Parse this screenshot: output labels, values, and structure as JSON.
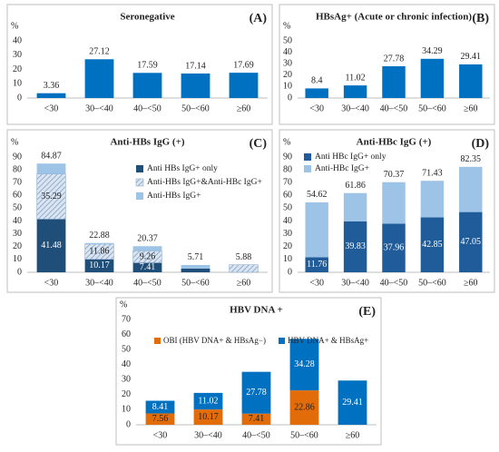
{
  "chart_data": [
    {
      "type": "bar",
      "title": "Seronegative",
      "panel": "(A)",
      "ylabel": "%",
      "categories": [
        "<30",
        "30–<40",
        "40–<50",
        "50–<60",
        "≥60"
      ],
      "values": [
        3.36,
        27.12,
        17.59,
        17.14,
        17.69
      ],
      "color": "#0070c0",
      "ylim": [
        0,
        40
      ],
      "yticks": [
        0,
        10,
        20,
        30,
        40
      ],
      "grid": false
    },
    {
      "type": "bar",
      "title": "HBsAg+ (Acute or chronic infection)",
      "panel": "(B)",
      "ylabel": "%",
      "categories": [
        "<30",
        "30–<40",
        "40–<50",
        "50–<60",
        "≥60"
      ],
      "values": [
        8.4,
        11.02,
        27.78,
        34.29,
        29.41
      ],
      "color": "#0070c0",
      "ylim": [
        0,
        50
      ],
      "yticks": [
        0,
        10,
        20,
        30,
        40,
        50
      ],
      "grid": false
    },
    {
      "type": "stacked_bar",
      "title": "Anti-HBs IgG (+)",
      "panel": "(C)",
      "ylabel": "%",
      "categories": [
        "<30",
        "30–<40",
        "40–<50",
        "50–<60",
        "≥60"
      ],
      "series": [
        {
          "name": "Anti HBs IgG+ only",
          "color": "#1f4e79",
          "values": [
            41.48,
            10.17,
            7.41,
            2.86,
            0
          ],
          "value_labels": [
            "41.48",
            "10.17",
            "7.41",
            null,
            null
          ]
        },
        {
          "name": "Anti-HBs IgG+&Anti-HBc IgG+",
          "color": "#7f9fc4",
          "hatch": true,
          "values": [
            35.29,
            11.86,
            9.26,
            0,
            5.88
          ],
          "value_labels": [
            "35.29",
            "11.86",
            "9.26",
            null,
            null
          ]
        },
        {
          "name": "Anti-HBs IgG+",
          "color": "#9dc3e6",
          "values": [
            8.1,
            0.85,
            3.7,
            2.85,
            0
          ]
        }
      ],
      "totals": [
        84.87,
        22.88,
        20.37,
        5.71,
        5.88
      ],
      "ylim": [
        0,
        90
      ],
      "yticks": [
        0,
        10,
        20,
        30,
        40,
        50,
        60,
        70,
        80,
        90
      ],
      "grid": false,
      "legend": "upper right"
    },
    {
      "type": "stacked_bar",
      "title": "Anti-HBc IgG (+)",
      "panel": "(D)",
      "ylabel": "%",
      "categories": [
        "<30",
        "30–<40",
        "40–<50",
        "50–<60",
        "≥60"
      ],
      "series": [
        {
          "name": "Anti HBc IgG+ only",
          "color": "#1f5c99",
          "values": [
            11.76,
            39.83,
            37.96,
            42.85,
            47.05
          ],
          "value_labels": [
            "11.76",
            "39.83",
            "37.96",
            "42.85",
            "47.05"
          ]
        },
        {
          "name": "Anti-HBc IgG+",
          "color": "#9dc3e6",
          "values": [
            42.86,
            22.03,
            32.41,
            28.58,
            35.3
          ]
        }
      ],
      "totals": [
        54.62,
        61.86,
        70.37,
        71.43,
        82.35
      ],
      "ylim": [
        0,
        90
      ],
      "yticks": [
        0,
        10,
        20,
        30,
        40,
        50,
        60,
        70,
        80,
        90
      ],
      "grid": false,
      "legend": "upper left"
    },
    {
      "type": "stacked_bar",
      "title": "HBV DNA +",
      "panel": "(E)",
      "ylabel": "%",
      "categories": [
        "<30",
        "30–<40",
        "40–<50",
        "50–<60",
        "≥60"
      ],
      "series": [
        {
          "name": "OBI (HBV DNA+ & HBsAg−)",
          "color": "#e36c0a",
          "values": [
            7.56,
            10.17,
            7.41,
            22.86,
            0
          ],
          "value_labels": [
            "7.56",
            "10.17",
            "7.41",
            "22.86",
            null
          ]
        },
        {
          "name": "HBV DNA+ & HBsAg+",
          "color": "#0070c0",
          "values": [
            8.41,
            11.02,
            27.78,
            34.28,
            29.41
          ],
          "value_labels": [
            "8.41",
            "11.02",
            "27.78",
            "34.28",
            "29.41"
          ]
        }
      ],
      "ylim": [
        0,
        70
      ],
      "yticks": [
        0,
        10,
        20,
        30,
        40,
        50,
        60,
        70
      ],
      "grid": false,
      "legend": "top"
    }
  ]
}
